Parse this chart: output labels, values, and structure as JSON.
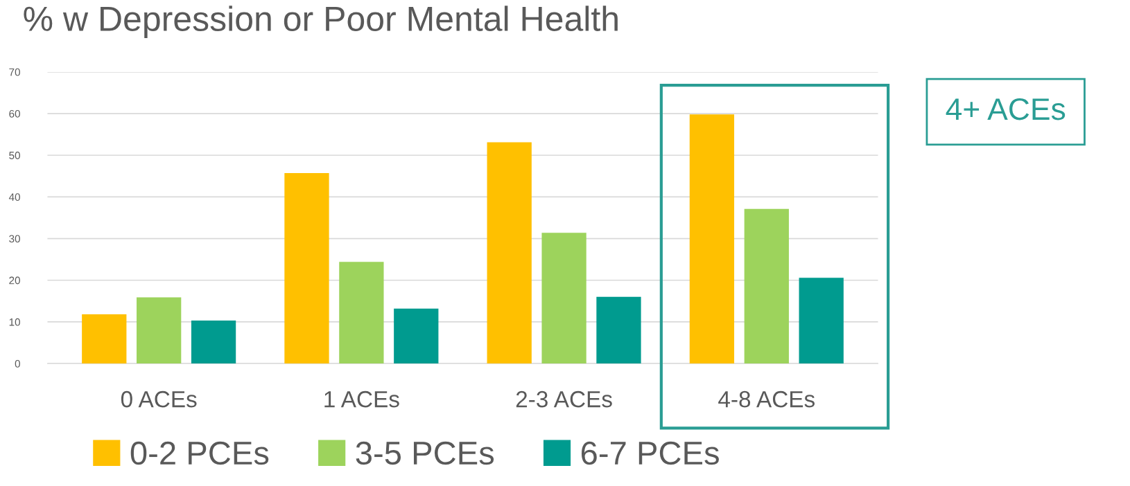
{
  "chart_data": {
    "type": "bar",
    "title": "% w Depression or Poor Mental Health",
    "categories": [
      "0 ACEs",
      "1 ACEs",
      "2-3 ACEs",
      "4-8 ACEs"
    ],
    "series": [
      {
        "name": "0-2 PCEs",
        "color": "#ffc000",
        "values": [
          11.8,
          45.7,
          53.1,
          59.8
        ]
      },
      {
        "name": "3-5 PCEs",
        "color": "#9dd35c",
        "values": [
          15.9,
          24.4,
          31.4,
          37.1
        ]
      },
      {
        "name": "6-7 PCEs",
        "color": "#009b8f",
        "values": [
          10.3,
          13.2,
          16.0,
          20.6
        ]
      }
    ],
    "ylim": [
      0,
      70
    ],
    "yticks": [
      0,
      10,
      20,
      30,
      40,
      50,
      60,
      70
    ],
    "grid": "y",
    "legend": "bottom",
    "annotations": [
      "4+ ACEs"
    ]
  }
}
